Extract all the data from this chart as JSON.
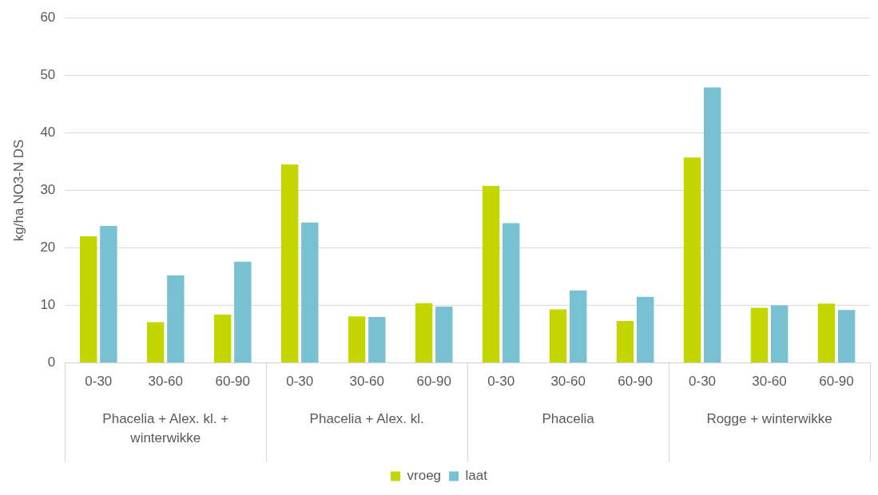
{
  "chart_data": {
    "type": "bar",
    "ylabel": "kg/ha NO3-N DS",
    "categories": [
      "0-30",
      "30-60",
      "60-90",
      "0-30",
      "30-60",
      "60-90",
      "0-30",
      "30-60",
      "60-90",
      "0-30",
      "30-60",
      "60-90"
    ],
    "annotations": [
      "Phacelia + Alex. kl. + winterwikke",
      "Phacelia + Alex. kl.",
      "Phacelia",
      "Rogge + winterwikke"
    ],
    "series": [
      {
        "name": "vroeg",
        "color": "#c3d600",
        "values": [
          22.0,
          7.1,
          8.4,
          34.5,
          8.1,
          10.4,
          30.8,
          9.3,
          7.3,
          35.7,
          9.6,
          10.3
        ]
      },
      {
        "name": "laat",
        "color": "#77c1d3",
        "values": [
          23.8,
          15.2,
          17.6,
          24.4,
          8.0,
          9.8,
          24.3,
          12.6,
          11.5,
          47.9,
          10.0,
          9.2
        ]
      }
    ],
    "ylim": [
      0,
      60
    ],
    "yticks": [
      0,
      10,
      20,
      30,
      40,
      50,
      60
    ],
    "grid": "y",
    "legend": "bottom"
  }
}
